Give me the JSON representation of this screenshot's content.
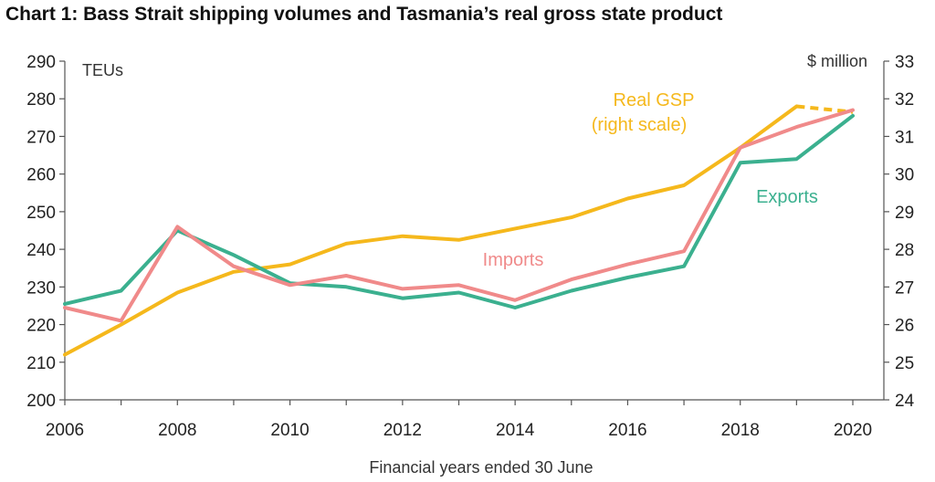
{
  "chart_data": {
    "type": "line",
    "title": "Chart 1: Bass Strait shipping volumes and Tasmania’s real gross state product",
    "xlabel": "Financial years ended 30 June",
    "ylabel_left": "TEUs",
    "ylabel_right": "$ million",
    "x": [
      2006,
      2007,
      2008,
      2009,
      2010,
      2011,
      2012,
      2013,
      2014,
      2015,
      2016,
      2017,
      2018,
      2019,
      2020
    ],
    "x_ticks": [
      2006,
      2008,
      2010,
      2012,
      2014,
      2016,
      2018,
      2020
    ],
    "xlim": [
      2006,
      2020
    ],
    "ylim_left": [
      200,
      290
    ],
    "y_ticks_left": [
      200,
      210,
      220,
      230,
      240,
      250,
      260,
      270,
      280,
      290
    ],
    "ylim_right": [
      24,
      33
    ],
    "y_ticks_right": [
      24,
      25,
      26,
      27,
      28,
      29,
      30,
      31,
      32,
      33
    ],
    "grid": false,
    "series": [
      {
        "name": "Imports",
        "axis": "left",
        "color": "#f08a8a",
        "values": [
          224.5,
          221,
          246,
          235.5,
          230.5,
          233,
          229.5,
          230.5,
          226.5,
          232,
          236,
          239.5,
          267,
          272.5,
          277
        ]
      },
      {
        "name": "Exports",
        "axis": "left",
        "color": "#3bb08f",
        "values": [
          225.5,
          229,
          245,
          238.5,
          231,
          230,
          227,
          228.5,
          224.5,
          229,
          232.5,
          235.5,
          263,
          264,
          275.5
        ]
      },
      {
        "name": "Real GSP",
        "sublabel": "(right scale)",
        "axis": "right",
        "color": "#f5b81c",
        "values": [
          25.2,
          26.0,
          26.85,
          27.4,
          27.6,
          28.15,
          28.35,
          28.25,
          28.55,
          28.85,
          29.35,
          29.7,
          30.7,
          31.8,
          31.65
        ],
        "dashed_from": 2019
      }
    ]
  }
}
